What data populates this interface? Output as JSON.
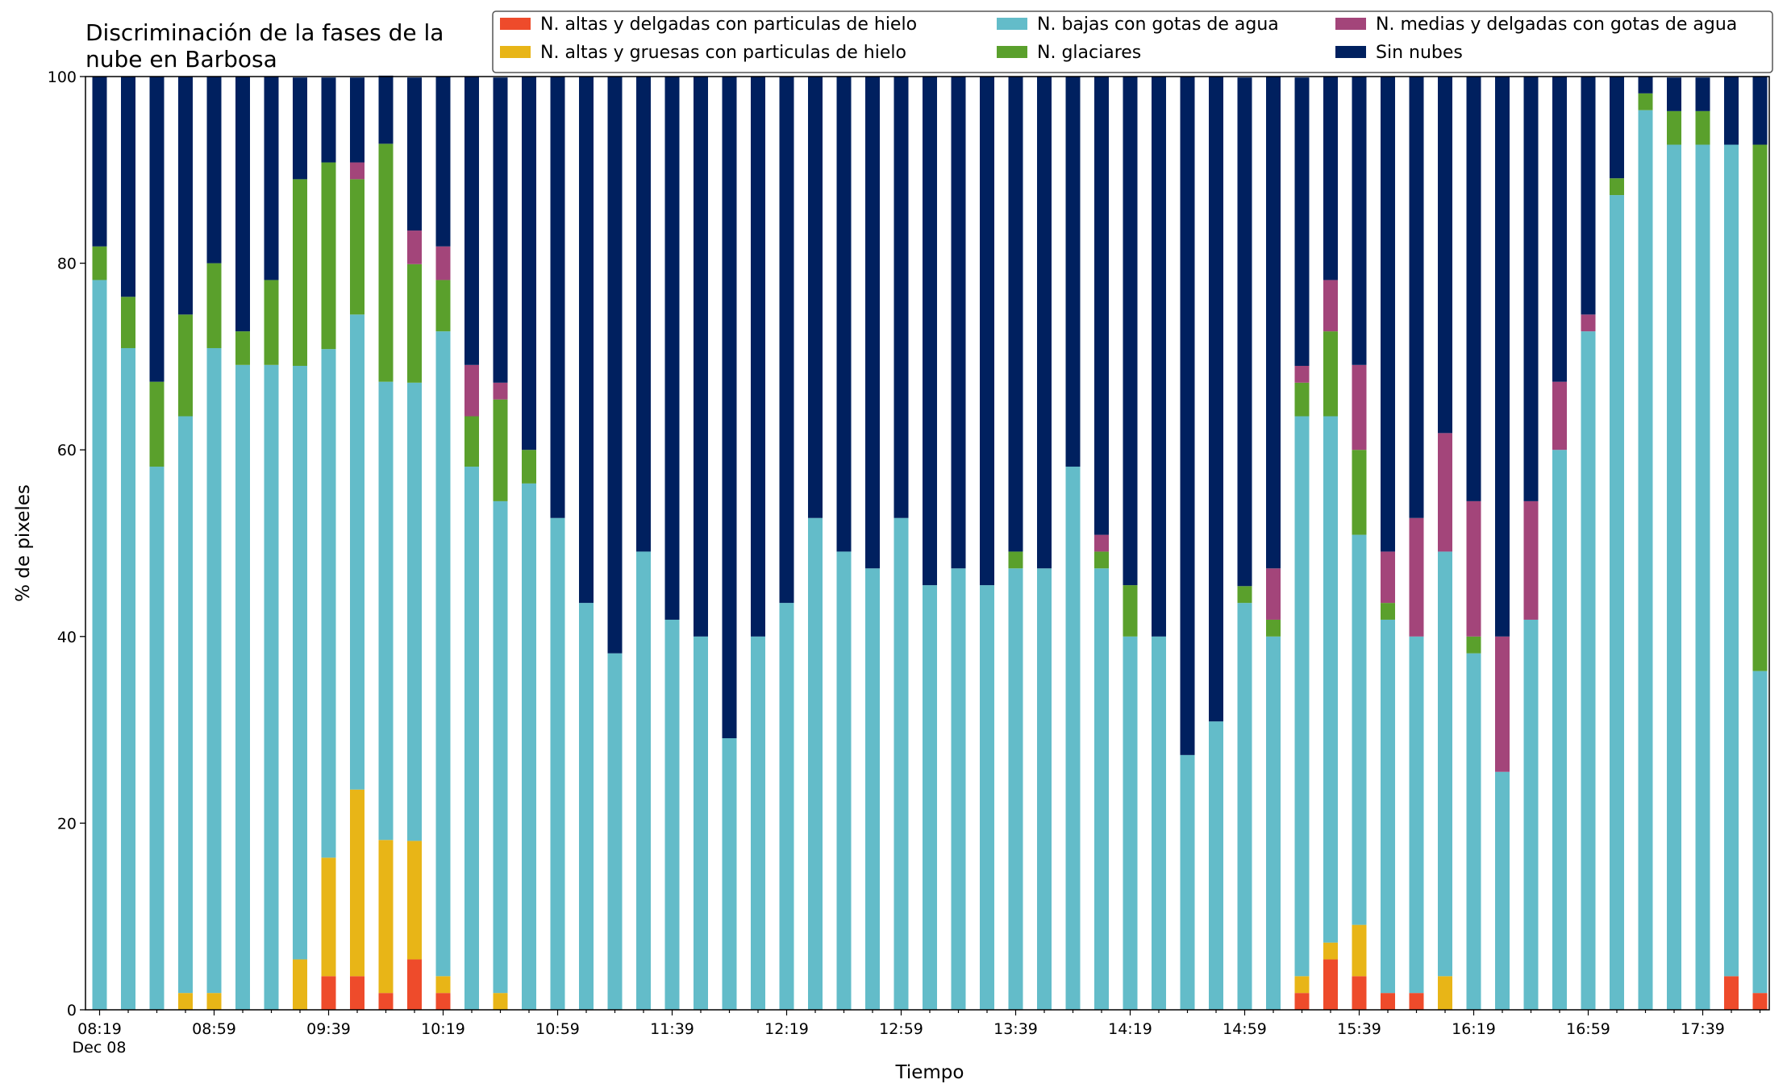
{
  "chart_data": {
    "type": "bar",
    "stacked": true,
    "title": "Discriminación de la fases de la nube en Barbosa",
    "title_lines": [
      "Discriminación de la fases de la",
      "nube en Barbosa"
    ],
    "xlabel": "Tiempo",
    "ylabel": "% de pixeles",
    "ylim": [
      0,
      100
    ],
    "yticks": [
      0,
      20,
      40,
      60,
      80,
      100
    ],
    "xtick_labels": [
      "08:19",
      "08:59",
      "09:39",
      "10:19",
      "10:59",
      "11:39",
      "12:19",
      "12:59",
      "13:39",
      "14:19",
      "14:59",
      "15:39",
      "16:19",
      "16:59",
      "17:39"
    ],
    "xtick_sublabel": "Dec 08",
    "grid": false,
    "legend_position": "top-right",
    "legend_columns": 3,
    "series": [
      {
        "name": "N. altas y delgadas con particulas de hielo",
        "color": "#ee4b2b",
        "values": [
          0,
          0,
          0,
          0,
          0,
          0,
          0,
          0,
          3.6,
          3.6,
          1.8,
          5.4,
          1.8,
          0,
          0,
          0,
          0,
          0,
          0,
          0,
          0,
          0,
          0,
          0,
          0,
          0,
          0,
          0,
          0,
          0,
          0,
          0,
          0,
          0,
          0,
          0,
          0,
          0,
          0,
          0,
          0,
          0,
          1.8,
          5.4,
          3.6,
          1.8,
          1.8,
          0,
          0,
          0,
          0,
          0,
          0,
          0,
          0,
          0,
          0,
          3.6,
          1.8
        ]
      },
      {
        "name": "N. altas y gruesas con particulas de hielo",
        "color": "#e8b517",
        "values": [
          0,
          0,
          0,
          1.8,
          1.8,
          0,
          0,
          5.4,
          12.7,
          20,
          16.4,
          12.7,
          1.8,
          0,
          1.8,
          0,
          0,
          0,
          0,
          0,
          0,
          0,
          0,
          0,
          0,
          0,
          0,
          0,
          0,
          0,
          0,
          0,
          0,
          0,
          0,
          0,
          0,
          0,
          0,
          0,
          0,
          0,
          1.8,
          1.8,
          5.5,
          0,
          0,
          3.6,
          0,
          0,
          0,
          0,
          0,
          0,
          0,
          0,
          0,
          0,
          0
        ]
      },
      {
        "name": "N. bajas con gotas de agua",
        "color": "#63bcc9",
        "values": [
          78.2,
          70.9,
          58.2,
          61.8,
          69.1,
          69.1,
          69.1,
          63.6,
          54.5,
          50.9,
          49.1,
          49.1,
          69.1,
          58.2,
          52.7,
          56.4,
          52.7,
          43.6,
          38.2,
          49.1,
          41.8,
          40,
          29.1,
          40,
          43.6,
          52.7,
          49.1,
          47.3,
          52.7,
          45.5,
          47.3,
          45.5,
          47.3,
          47.3,
          58.2,
          47.3,
          40,
          40,
          27.3,
          30.9,
          43.6,
          40,
          60,
          56.4,
          41.8,
          40,
          38.2,
          45.5,
          38.2,
          25.5,
          41.8,
          60,
          72.7,
          87.3,
          96.4,
          92.7,
          92.7,
          89.1,
          34.5
        ]
      },
      {
        "name": "N. glaciares",
        "color": "#5aa02c",
        "values": [
          3.6,
          5.5,
          9.1,
          10.9,
          9.1,
          3.6,
          9.1,
          20,
          20,
          14.5,
          25.5,
          12.7,
          5.5,
          5.4,
          10.9,
          3.6,
          0,
          0,
          0,
          0,
          0,
          0,
          0,
          0,
          0,
          0,
          0,
          0,
          0,
          0,
          0,
          0,
          1.8,
          0,
          0,
          1.8,
          5.5,
          0,
          0,
          0,
          1.8,
          1.8,
          3.6,
          9.1,
          9.1,
          1.8,
          0,
          0,
          1.8,
          0,
          0,
          0,
          0,
          1.8,
          1.8,
          3.6,
          3.6,
          0,
          56.4
        ]
      },
      {
        "name": "N. medias y delgadas con gotas de agua",
        "color": "#a3457a",
        "values": [
          0,
          0,
          0,
          0,
          0,
          0,
          0,
          0,
          0,
          1.8,
          0,
          3.6,
          3.6,
          5.5,
          1.8,
          0,
          0,
          0,
          0,
          0,
          0,
          0,
          0,
          0,
          0,
          0,
          0,
          0,
          0,
          0,
          0,
          0,
          0,
          0,
          0,
          1.8,
          0,
          0,
          0,
          0,
          0,
          5.5,
          1.8,
          5.5,
          9.1,
          5.5,
          12.7,
          12.7,
          14.5,
          14.5,
          12.7,
          7.3,
          1.8,
          0,
          0,
          0,
          0,
          0,
          0
        ]
      },
      {
        "name": "Sin nubes",
        "color": "#00205f",
        "values": [
          18.2,
          23.6,
          32.7,
          25.5,
          20,
          27.3,
          21.8,
          10.9,
          9.1,
          9.1,
          7.3,
          16.4,
          18.2,
          30.9,
          32.7,
          40,
          47.3,
          56.4,
          61.8,
          50.9,
          58.2,
          60,
          70.9,
          60,
          56.4,
          47.3,
          50.9,
          52.7,
          47.3,
          54.5,
          52.7,
          54.5,
          50.9,
          52.7,
          41.8,
          49.1,
          54.5,
          60,
          72.7,
          69.1,
          54.5,
          52.7,
          30.9,
          21.8,
          30.9,
          50.9,
          47.3,
          38.2,
          45.5,
          60,
          45.5,
          32.7,
          25.5,
          10.9,
          1.8,
          3.6,
          3.6,
          7.3,
          7.3
        ]
      }
    ]
  }
}
